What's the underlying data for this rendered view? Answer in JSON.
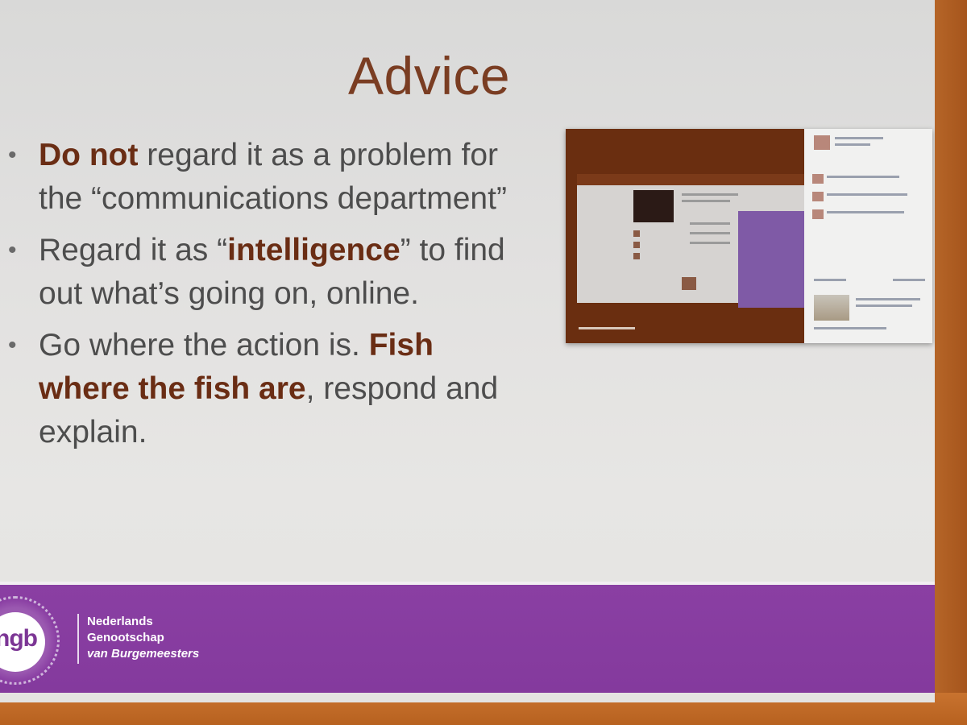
{
  "slide": {
    "title": "Advice",
    "bullets": [
      {
        "bold1": "Do not",
        "text1": " regard it as a problem for the “communications department”",
        "bold2": "",
        "text2": "",
        "bold3": "",
        "text3": ""
      },
      {
        "bold1": "",
        "text1": "Regard it as “",
        "bold2": "intelligence",
        "text2": "” to find out what’s going on, online.",
        "bold3": "",
        "text3": ""
      },
      {
        "bold1": "",
        "text1": "Go where the action is. ",
        "bold2": "Fish where the fish are",
        "text2": ", respond and explain.",
        "bold3": "",
        "text3": ""
      }
    ],
    "bullet_glyph": "•"
  },
  "footer": {
    "logo_text": "ngb",
    "org_line1": "Nederlands",
    "org_line2": "Genootschap",
    "org_line3": "van Burgemeesters"
  },
  "colors": {
    "title": "#7a3d22",
    "bold_text": "#6a2d14",
    "body_text": "#4d4d4d",
    "footer_band": "#8a3fa3",
    "wall": "#c9722e"
  }
}
